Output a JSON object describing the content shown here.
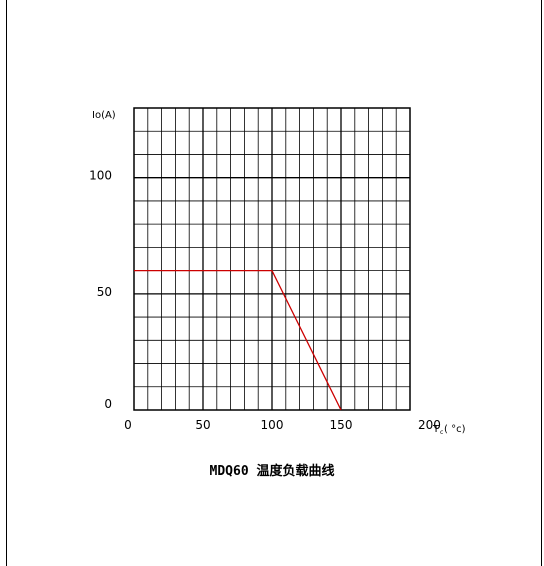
{
  "chart_data": {
    "type": "line",
    "title": "MDQ60 温度负载曲线",
    "ylabel": "Io(A)",
    "xlabel_main": "T",
    "xlabel_sub": "c",
    "xlabel_unit": "( °c)",
    "xlim": [
      0,
      200
    ],
    "ylim": [
      0,
      130
    ],
    "x_ticks": [
      "0",
      "50",
      "100",
      "150",
      "200"
    ],
    "y_ticks": [
      "0",
      "50",
      "100"
    ],
    "grid": true,
    "series": [
      {
        "x": [
          0,
          100,
          150
        ],
        "y": [
          60,
          60,
          0
        ],
        "color": "#cc0000"
      }
    ]
  }
}
